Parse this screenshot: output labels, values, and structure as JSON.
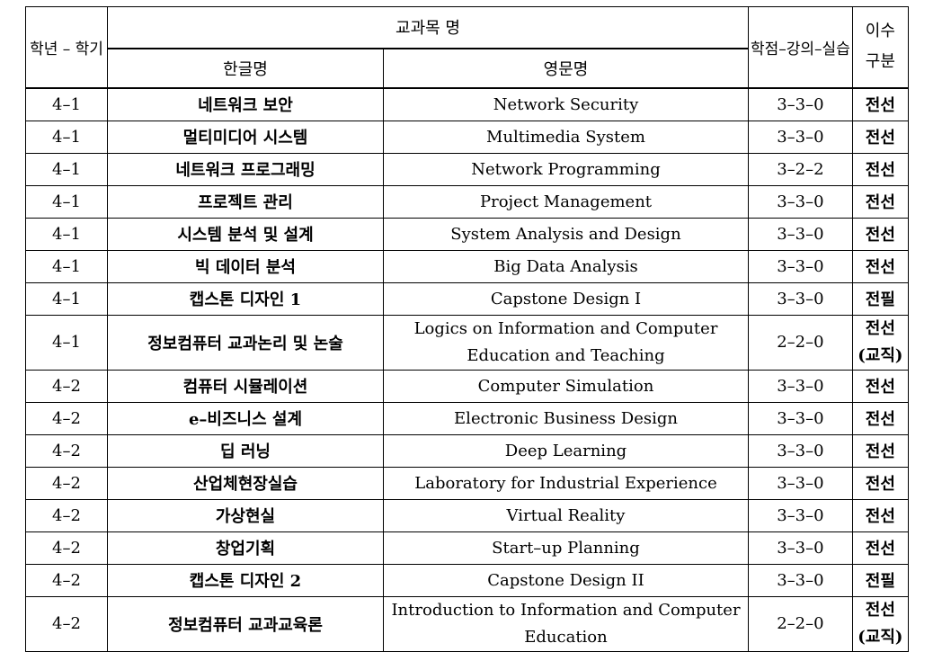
{
  "header": {
    "year_semester": "학년 – 학기",
    "course_name": "교과목 명",
    "korean_name": "한글명",
    "english_name": "영문명",
    "credit_hours": "학점–강의–실습",
    "completion_line1": "이수",
    "completion_line2": "구분"
  },
  "rows": [
    {
      "term": "4–1",
      "kor": "네트워크 보안",
      "eng": "Network Security",
      "eng2": "",
      "credit": "3–3–0",
      "type": "전선",
      "type2": ""
    },
    {
      "term": "4–1",
      "kor": "멀티미디어 시스템",
      "eng": "Multimedia System",
      "eng2": "",
      "credit": "3–3–0",
      "type": "전선",
      "type2": ""
    },
    {
      "term": "4–1",
      "kor": "네트워크 프로그래밍",
      "eng": "Network Programming",
      "eng2": "",
      "credit": "3–2–2",
      "type": "전선",
      "type2": ""
    },
    {
      "term": "4–1",
      "kor": "프로젝트 관리",
      "eng": "Project Management",
      "eng2": "",
      "credit": "3–3–0",
      "type": "전선",
      "type2": ""
    },
    {
      "term": "4–1",
      "kor": "시스템 분석  및 설계",
      "eng": "System Analysis and Design",
      "eng2": "",
      "credit": "3–3–0",
      "type": "전선",
      "type2": ""
    },
    {
      "term": "4–1",
      "kor": "빅 데이터 분석",
      "eng": "Big Data Analysis",
      "eng2": "",
      "credit": "3–3–0",
      "type": "전선",
      "type2": ""
    },
    {
      "term": "4–1",
      "kor": "캡스톤 디자인 1",
      "eng": "Capstone Design I",
      "eng2": "",
      "credit": "3–3–0",
      "type": "전필",
      "type2": ""
    },
    {
      "term": "4–1",
      "kor": "정보컴퓨터 교과논리 및 논술",
      "eng": "Logics on Information and Computer",
      "eng2": "Education and Teaching",
      "credit": "2–2–0",
      "type": "전선",
      "type2": "(교직)"
    },
    {
      "term": "4–2",
      "kor": "컴퓨터 시뮬레이션",
      "eng": "Computer Simulation",
      "eng2": "",
      "credit": "3–3–0",
      "type": "전선",
      "type2": ""
    },
    {
      "term": "4–2",
      "kor": "e–비즈니스 설계",
      "eng": "Electronic Business Design",
      "eng2": "",
      "credit": "3–3–0",
      "type": "전선",
      "type2": ""
    },
    {
      "term": "4–2",
      "kor": "딥 러닝",
      "eng": "Deep Learning",
      "eng2": "",
      "credit": "3–3–0",
      "type": "전선",
      "type2": ""
    },
    {
      "term": "4–2",
      "kor": "산업체현장실습",
      "eng": "Laboratory for Industrial Experience",
      "eng2": "",
      "credit": "3–3–0",
      "type": "전선",
      "type2": ""
    },
    {
      "term": "4–2",
      "kor": "가상현실",
      "eng": "Virtual Reality",
      "eng2": "",
      "credit": "3–3–0",
      "type": "전선",
      "type2": ""
    },
    {
      "term": "4–2",
      "kor": "창업기획",
      "eng": "Start–up Planning",
      "eng2": "",
      "credit": "3–3–0",
      "type": "전선",
      "type2": ""
    },
    {
      "term": "4–2",
      "kor": "캡스톤 디자인 2",
      "eng": "Capstone Design II",
      "eng2": "",
      "credit": "3–3–0",
      "type": "전필",
      "type2": ""
    },
    {
      "term": "4–2",
      "kor": "정보컴퓨터 교과교육론",
      "eng": "Introduction to Information and Computer",
      "eng2": "Education",
      "credit": "2–2–0",
      "type": "전선",
      "type2": "(교직)"
    }
  ]
}
